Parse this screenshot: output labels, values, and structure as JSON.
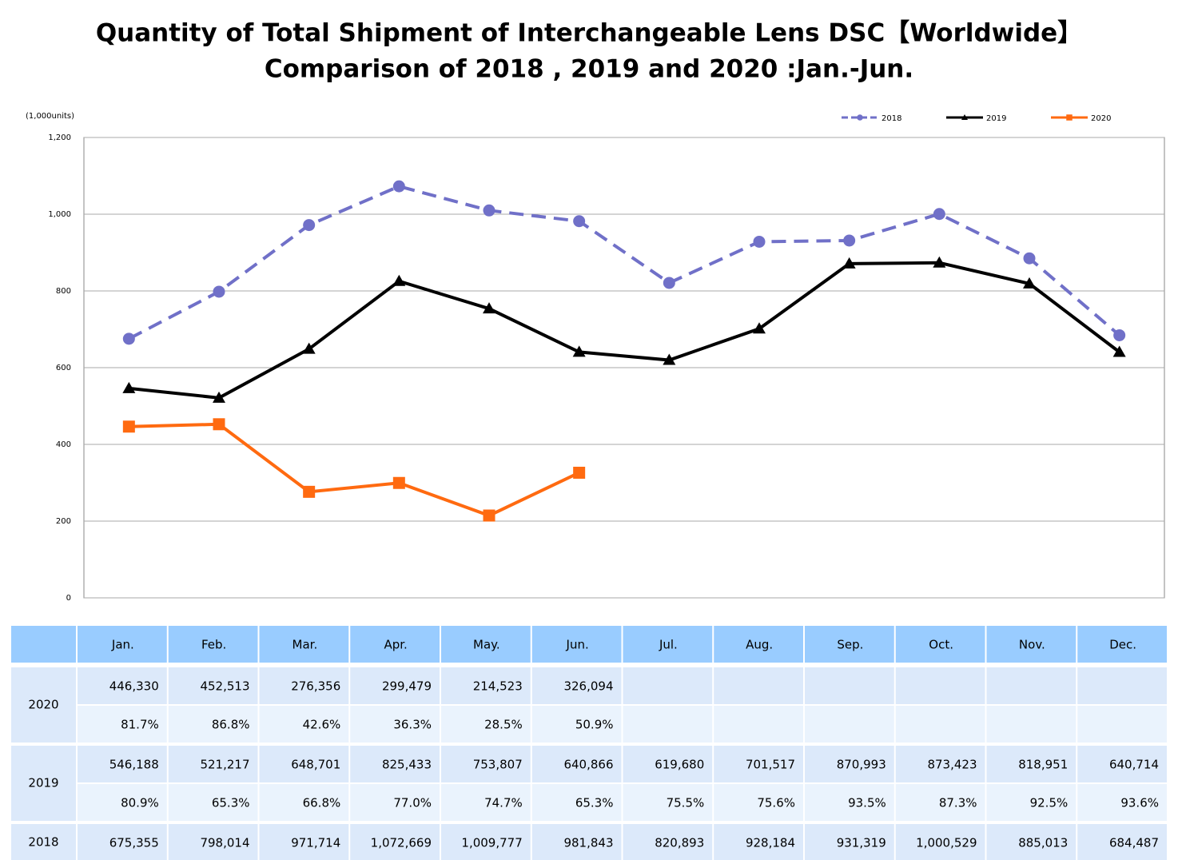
{
  "chart_data": {
    "type": "line",
    "title": [
      "Quantity of Total Shipment of Interchangeable Lens DSC【Worldwide】",
      "Comparison of 2018 , 2019 and 2020 :Jan.-Jun."
    ],
    "y_label": "(1,000units)",
    "categories": [
      "Jan.",
      "Feb.",
      "Mar.",
      "Apr.",
      "May.",
      "Jun.",
      "Jul.",
      "Aug.",
      "Sep.",
      "Oct.",
      "Nov.",
      "Dec."
    ],
    "series": [
      {
        "name": "2018",
        "color": "#7070c8",
        "dashed": true,
        "marker": "circle",
        "values": [
          675.355,
          798.014,
          971.714,
          1072.669,
          1009.777,
          981.843,
          820.893,
          928.184,
          931.319,
          1000.529,
          885.013,
          684.487
        ]
      },
      {
        "name": "2019",
        "color": "#000000",
        "dashed": false,
        "marker": "triangle",
        "values": [
          546.188,
          521.217,
          648.701,
          825.433,
          753.807,
          640.866,
          619.68,
          701.517,
          870.993,
          873.423,
          818.951,
          640.714
        ]
      },
      {
        "name": "2020",
        "color": "#ff6a10",
        "dashed": false,
        "marker": "square",
        "values": [
          446.33,
          452.513,
          276.356,
          299.479,
          214.523,
          326.094,
          null,
          null,
          null,
          null,
          null,
          null
        ]
      }
    ],
    "ylim": [
      0,
      1200
    ],
    "yticks": [
      0,
      200,
      400,
      600,
      800,
      {
        "value": 1000,
        "label": "1,000"
      },
      {
        "value": 1200,
        "label": "1,200"
      }
    ],
    "grid": true,
    "legend": "top-right"
  },
  "table": {
    "groups": [
      {
        "label": "2020",
        "rows": [
          [
            "446,330",
            "452,513",
            "276,356",
            "299,479",
            "214,523",
            "326,094"
          ],
          [
            "81.7%",
            "86.8%",
            "42.6%",
            "36.3%",
            "28.5%",
            "50.9%"
          ]
        ]
      },
      {
        "label": "2019",
        "rows": [
          [
            "546,188",
            "521,217",
            "648,701",
            "825,433",
            "753,807",
            "640,866",
            "619,680",
            "701,517",
            "870,993",
            "873,423",
            "818,951",
            "640,714"
          ],
          [
            "80.9%",
            "65.3%",
            "66.8%",
            "77.0%",
            "74.7%",
            "65.3%",
            "75.5%",
            "75.6%",
            "93.5%",
            "87.3%",
            "92.5%",
            "93.6%"
          ]
        ]
      },
      {
        "label": "2018",
        "rows": [
          [
            "675,355",
            "798,014",
            "971,714",
            "1,072,669",
            "1,009,777",
            "981,843",
            "820,893",
            "928,184",
            "931,319",
            "1,000,529",
            "885,013",
            "684,487"
          ]
        ]
      }
    ]
  }
}
